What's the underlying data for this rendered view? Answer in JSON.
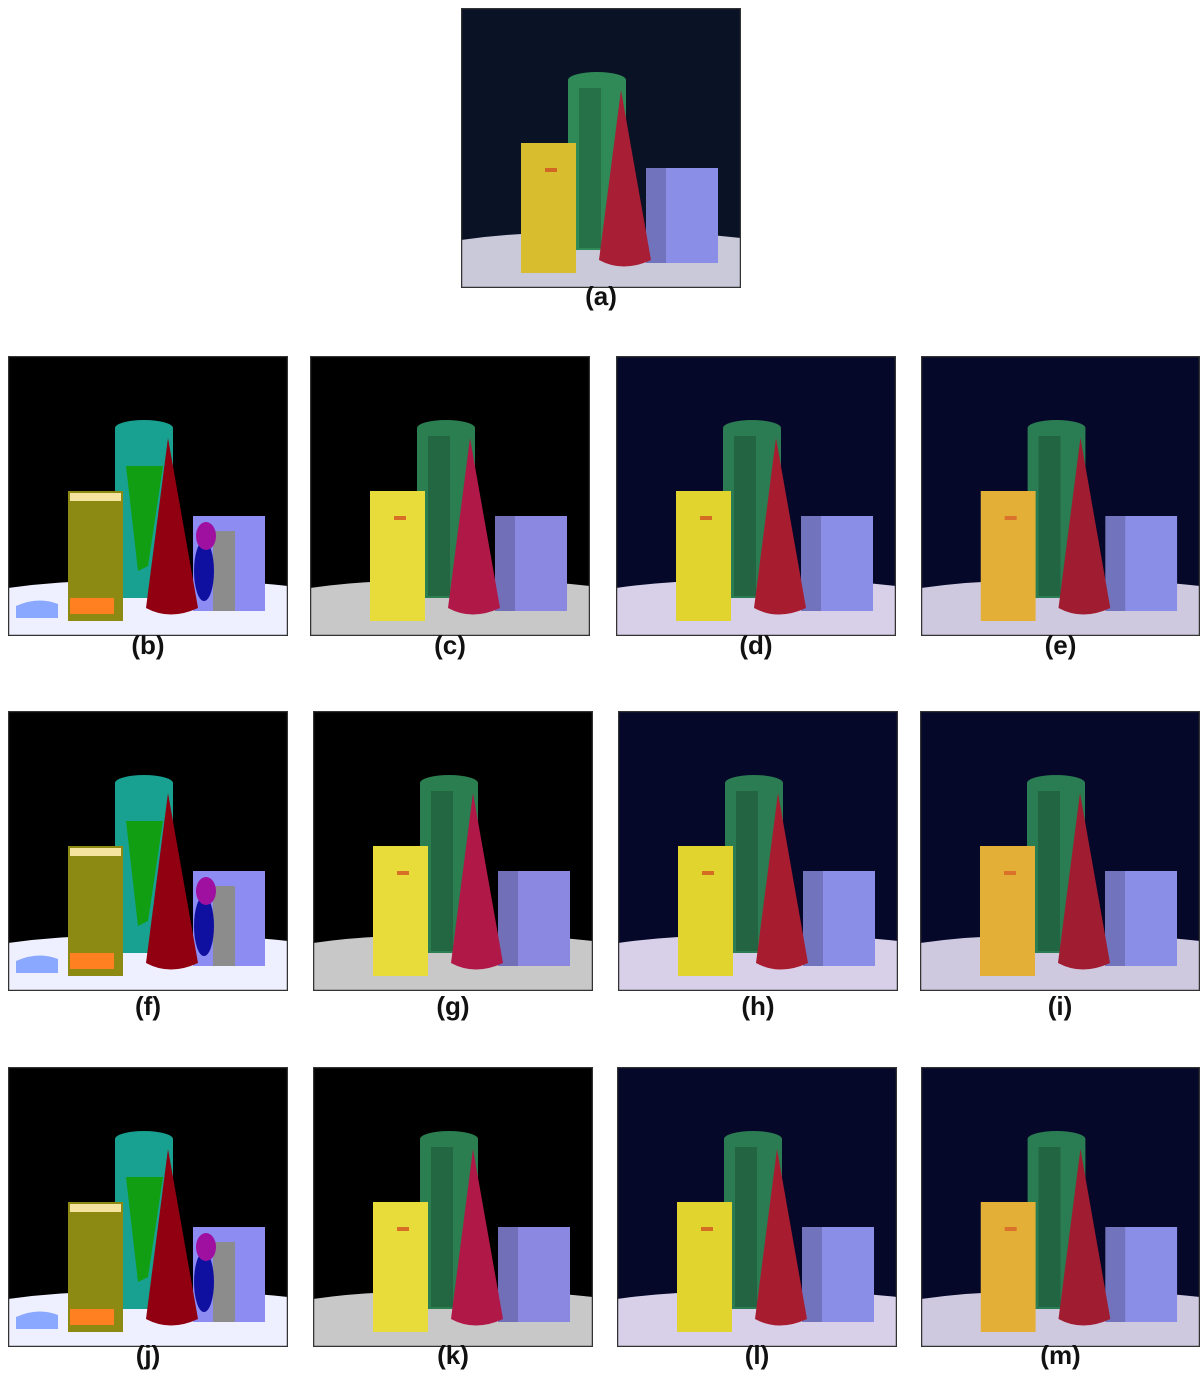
{
  "panels": [
    {
      "id": "a",
      "label": "(a)",
      "style": "original"
    },
    {
      "id": "b",
      "label": "(b)",
      "style": "quantized"
    },
    {
      "id": "c",
      "label": "(c)",
      "style": "smooth"
    },
    {
      "id": "d",
      "label": "(d)",
      "style": "smooth-navy"
    },
    {
      "id": "e",
      "label": "(e)",
      "style": "smooth-orange"
    },
    {
      "id": "f",
      "label": "(f)",
      "style": "quantized"
    },
    {
      "id": "g",
      "label": "(g)",
      "style": "smooth"
    },
    {
      "id": "h",
      "label": "(h)",
      "style": "smooth-navy"
    },
    {
      "id": "i",
      "label": "(i)",
      "style": "smooth-orange"
    },
    {
      "id": "j",
      "label": "(j)",
      "style": "quantized"
    },
    {
      "id": "k",
      "label": "(k)",
      "style": "smooth"
    },
    {
      "id": "l",
      "label": "(l)",
      "style": "smooth-navy"
    },
    {
      "id": "m",
      "label": "(m)",
      "style": "smooth-orange"
    }
  ],
  "palettes": {
    "original": {
      "bg": "#0a1226",
      "floor": "#c9c9da",
      "yellow": "#d8be2e",
      "green": "#2f8a57",
      "red": "#a81e35",
      "blue": "#8a8ee6"
    },
    "quantized": {
      "bg": "#000000",
      "floor": "#eef0ff",
      "yellow": "#8c8a12",
      "green": "#18a090",
      "red": "#900010",
      "blue": "#8c8cf2"
    },
    "smooth": {
      "bg": "#000000",
      "floor": "#c8c8c8",
      "yellow": "#e8dc3a",
      "green": "#2a7e50",
      "red": "#b01848",
      "blue": "#8a88e0"
    },
    "smooth-navy": {
      "bg": "#06082a",
      "floor": "#d8d0e8",
      "yellow": "#e2d42e",
      "green": "#2b7c52",
      "red": "#a81c30",
      "blue": "#8a8ee6"
    },
    "smooth-orange": {
      "bg": "#06082a",
      "floor": "#cfc9e0",
      "yellow": "#e0b434",
      "green": "#2a7c52",
      "red": "#a01c30",
      "blue": "#8a8ee6"
    }
  }
}
